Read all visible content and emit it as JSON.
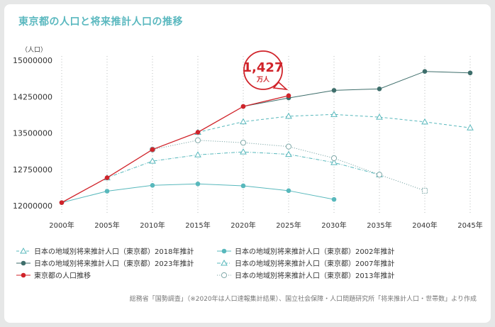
{
  "title": "東京都の人口と将来推計人口の推移",
  "source": "総務省「国勢調査」（※2020年は人口速報集計結果）、国立社会保障・人口問題研究所「将来推計人口・世帯数」より作成",
  "callout": {
    "value": "1,427",
    "unit": "万人"
  },
  "colors": {
    "red": "#d0232a",
    "teal_dark": "#3e6e6b",
    "teal_light": "#58b8bc",
    "teal_line": "#7fc7c9",
    "grid": "#b9bcbc"
  },
  "chart_data": {
    "type": "line",
    "ylabel": "（人口）",
    "ylim": [
      12000000,
      15000000
    ],
    "yticks": [
      12000000,
      12750000,
      13500000,
      14250000,
      15000000
    ],
    "ytick_labels": [
      "12000000",
      "12750000",
      "13500000",
      "14250000",
      "15000000"
    ],
    "xlim": [
      2000,
      2045
    ],
    "xticks": [
      2000,
      2005,
      2010,
      2015,
      2020,
      2025,
      2030,
      2035,
      2040,
      2045
    ],
    "xtick_labels": [
      "2000年",
      "2005年",
      "2010年",
      "2015年",
      "2020年",
      "2025年",
      "2030年",
      "2035年",
      "2040年",
      "2045年"
    ],
    "grid": "vertical-dotted",
    "legend_position": "bottom",
    "series": [
      {
        "name": "日本の地域別将来推計人口（東京都）2018年推計",
        "marker": "triangle-open",
        "style": "dashed",
        "color": "#58b8bc",
        "x": [
          2015,
          2020,
          2025,
          2030,
          2035,
          2040,
          2045
        ],
        "values": [
          13515000,
          13733000,
          13846000,
          13883000,
          13828000,
          13729000,
          13607000
        ]
      },
      {
        "name": "日本の地域別将来推計人口（東京都）2023年推計",
        "marker": "circle-filled",
        "style": "solid",
        "color": "#3e6e6b",
        "x": [
          2020,
          2025,
          2030,
          2035,
          2040,
          2045
        ],
        "values": [
          14048000,
          14223000,
          14380000,
          14410000,
          14770000,
          14740000
        ]
      },
      {
        "name": "東京都の人口推移",
        "marker": "circle-filled",
        "style": "solid",
        "color": "#d0232a",
        "x": [
          2000,
          2005,
          2010,
          2015,
          2020,
          2025
        ],
        "values": [
          12064000,
          12577000,
          13159000,
          13515000,
          14048000,
          14270000
        ]
      },
      {
        "name": "日本の地域別将来推計人口（東京都）2002年推計",
        "marker": "circle-filled",
        "style": "solid",
        "color": "#58b8bc",
        "x": [
          2000,
          2005,
          2010,
          2015,
          2020,
          2025,
          2030
        ],
        "values": [
          12064000,
          12300000,
          12420000,
          12450000,
          12410000,
          12310000,
          12130000
        ]
      },
      {
        "name": "日本の地域別将来推計人口（東京都）2007年推計",
        "marker": "triangle-open",
        "style": "dashdot",
        "color": "#58b8bc",
        "x": [
          2005,
          2010,
          2015,
          2020,
          2025,
          2030,
          2035
        ],
        "values": [
          12577000,
          12920000,
          13050000,
          13110000,
          13060000,
          12890000,
          12640000
        ]
      },
      {
        "name": "日本の地域別将来推計人口（東京都）2013年推計",
        "marker": "circle-open",
        "style": "dotted",
        "color": "#7fa8a8",
        "x": [
          2010,
          2015,
          2020,
          2025,
          2030,
          2035,
          2040
        ],
        "values": [
          13159000,
          13350000,
          13300000,
          13220000,
          12980000,
          12640000,
          12310000
        ]
      }
    ]
  },
  "legend": {
    "left": [
      {
        "label": "日本の地域別将来推計人口（東京都）2018年推計",
        "marker": "triangle-open",
        "style": "dashed",
        "color": "#58b8bc"
      },
      {
        "label": "日本の地域別将来推計人口（東京都）2023年推計",
        "marker": "circle-filled",
        "style": "solid",
        "color": "#3e6e6b"
      },
      {
        "label": "東京都の人口推移",
        "marker": "circle-filled",
        "style": "solid",
        "color": "#d0232a"
      }
    ],
    "right": [
      {
        "label": "日本の地域別将来推計人口（東京都）2002年推計",
        "marker": "circle-filled",
        "style": "solid",
        "color": "#58b8bc"
      },
      {
        "label": "日本の地域別将来推計人口（東京都）2007年推計",
        "marker": "triangle-open",
        "style": "dashdot",
        "color": "#58b8bc"
      },
      {
        "label": "日本の地域別将来推計人口（東京都）2013年推計",
        "marker": "circle-open",
        "style": "dotted",
        "color": "#7fa8a8"
      }
    ]
  }
}
